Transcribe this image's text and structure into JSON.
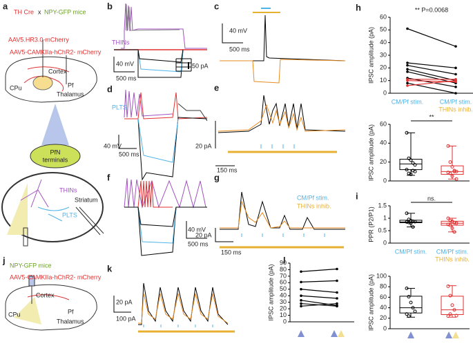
{
  "figure": {
    "panel_labels": [
      "a",
      "b",
      "c",
      "d",
      "e",
      "f",
      "g",
      "h",
      "i",
      "j",
      "k",
      "l"
    ],
    "a": {
      "line1a": "TH Cre",
      "line1b": "x",
      "line1c": "NPY-GFP mice",
      "virus1": "AAV5.HR3.0-mCherry",
      "virus2": "AAV5-CAMKIIa-hChR2- mCherry",
      "cortex": "Cortex",
      "cpu": "CPu",
      "pf": "Pf",
      "thalamus": "Thalamus",
      "pfn1": "PfN",
      "pfn2": "terminals",
      "thins": "THINs",
      "striatum": "Striatum",
      "plts": "PLTS"
    },
    "b": {
      "label": "THINs",
      "mv": "40 mV",
      "ms": "500 ms",
      "pa": "50 pA"
    },
    "c": {
      "mv": "40 mV",
      "ms": "500 ms"
    },
    "d": {
      "label": "PLTS",
      "mv": "40 mV",
      "ms": "500 ms"
    },
    "e": {
      "pa": "20 pA",
      "ms": "150 ms"
    },
    "f": {
      "mv": "40 mV",
      "ms": "500 ms"
    },
    "g": {
      "legend1": "CM/Pf stim.",
      "legend2": "THINs inhib.",
      "pa": "20 pA",
      "ms": "150 ms"
    },
    "j": {
      "mice": "NPY-GFP mice",
      "virus": "AAV5-CAMKIIa-hChR2- mCherry",
      "cortex": "Cortex",
      "cpu": "CPu",
      "pf": "Pf",
      "thalamus": "Thalamus"
    },
    "k": {
      "pa": "20 pA",
      "ms": "100 pA"
    }
  },
  "chart_data": [
    {
      "type": "paired",
      "ylabel": "IPSC amplitude (pA)",
      "annotation": "** P=0.0068",
      "ylim": [
        0,
        60
      ],
      "yticks": [
        0,
        10,
        20,
        30,
        40,
        50,
        60
      ],
      "categories": [
        [
          "CM/Pf stim."
        ],
        [
          "CM/Pf stim.",
          "THINs inhib."
        ]
      ],
      "category_colors": [
        "#4fb3e8",
        "#e8b030"
      ],
      "pairs": [
        {
          "color": "#000000",
          "values": [
            51,
            37
          ]
        },
        {
          "color": "#000000",
          "values": [
            24,
            20
          ]
        },
        {
          "color": "#000000",
          "values": [
            22,
            15
          ]
        },
        {
          "color": "#000000",
          "values": [
            19,
            10
          ]
        },
        {
          "color": "#000000",
          "values": [
            17,
            8
          ]
        },
        {
          "color": "#000000",
          "values": [
            12,
            5
          ]
        },
        {
          "color": "#000000",
          "values": [
            8,
            0
          ]
        },
        {
          "color": "#e03030",
          "values": [
            11,
            11
          ]
        },
        {
          "color": "#e03030",
          "values": [
            10,
            9
          ]
        },
        {
          "color": "#e03030",
          "values": [
            6,
            10
          ]
        }
      ]
    },
    {
      "type": "box",
      "ylabel": "IPSC amplitude (pA)",
      "annotation": "**",
      "ylim": [
        0,
        60
      ],
      "yticks": [
        0,
        20,
        40,
        60
      ],
      "groups": [
        {
          "color": "#000000",
          "whisker": [
            6,
            51
          ],
          "q1": 12,
          "median": 18,
          "q3": 23,
          "points": [
            51,
            24,
            22,
            19,
            17,
            12,
            8,
            7,
            11,
            10
          ]
        },
        {
          "color": "#e03030",
          "whisker": [
            2,
            37
          ],
          "q1": 7,
          "median": 10,
          "q3": 16,
          "points": [
            37,
            20,
            15,
            11,
            10,
            9,
            8,
            5,
            10,
            2
          ]
        }
      ]
    },
    {
      "type": "box",
      "ylabel": "PPR (P2/P1)",
      "annotation": "ns.",
      "ylim": [
        0,
        1.5
      ],
      "yticks": [
        0,
        0.5,
        1,
        1.5
      ],
      "categories": [
        [
          "CM/Pf stim."
        ],
        [
          "CM/Pf stim.",
          "THINs inhib."
        ]
      ],
      "category_colors": [
        "#4fb3e8",
        "#e8b030"
      ],
      "groups": [
        {
          "color": "#000000",
          "whisker": [
            0.65,
            1.2
          ],
          "q1": 0.82,
          "median": 0.85,
          "q3": 0.92,
          "points": [
            1.2,
            0.95,
            0.9,
            0.88,
            0.86,
            0.85,
            0.83,
            0.8,
            0.65
          ]
        },
        {
          "color": "#e03030",
          "whisker": [
            0.45,
            1.0
          ],
          "q1": 0.72,
          "median": 0.8,
          "q3": 0.88,
          "points": [
            1.0,
            0.9,
            0.87,
            0.82,
            0.8,
            0.75,
            0.72,
            0.6,
            0.45
          ]
        }
      ]
    },
    {
      "type": "paired",
      "ylabel": "IPSC amplitude (pA)",
      "ylim": [
        0,
        90
      ],
      "yticks": [
        0,
        10,
        20,
        30,
        40,
        50,
        60,
        70,
        80,
        90
      ],
      "pairs": [
        {
          "color": "#000000",
          "values": [
            77,
            81
          ]
        },
        {
          "color": "#000000",
          "values": [
            61,
            63
          ]
        },
        {
          "color": "#000000",
          "values": [
            50,
            45
          ]
        },
        {
          "color": "#000000",
          "values": [
            40,
            36
          ]
        },
        {
          "color": "#000000",
          "values": [
            33,
            25
          ]
        },
        {
          "color": "#000000",
          "values": [
            28,
            24
          ]
        },
        {
          "color": "#000000",
          "values": [
            24,
            28
          ]
        }
      ]
    },
    {
      "type": "box",
      "ylabel": "IPSC amplitude (pA)",
      "ylim": [
        0,
        100
      ],
      "yticks": [
        0,
        20,
        40,
        60,
        80,
        100
      ],
      "groups": [
        {
          "color": "#000000",
          "whisker": [
            22,
            77
          ],
          "q1": 30,
          "median": 40,
          "q3": 62,
          "points": [
            77,
            61,
            50,
            40,
            33,
            28,
            24
          ]
        },
        {
          "color": "#e03030",
          "whisker": [
            22,
            82
          ],
          "q1": 27,
          "median": 36,
          "q3": 62,
          "points": [
            81,
            63,
            45,
            36,
            25,
            24,
            28
          ]
        }
      ]
    }
  ]
}
